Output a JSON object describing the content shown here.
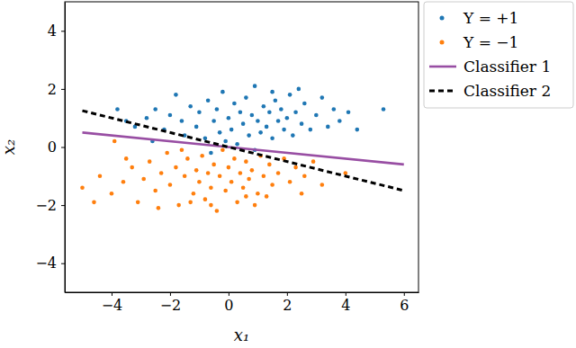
{
  "chart_data": {
    "type": "scatter",
    "x_label": "x₁",
    "y_label": "x₂",
    "xlim": [
      -5.6,
      6.5
    ],
    "ylim": [
      -5,
      5
    ],
    "xticks": [
      {
        "value": -4,
        "label": "−4"
      },
      {
        "value": -2,
        "label": "−2"
      },
      0,
      2,
      4,
      6
    ],
    "yticks": [
      {
        "value": -4,
        "label": "−4"
      },
      {
        "value": -2,
        "label": "−2"
      },
      0,
      2,
      4
    ],
    "grid": false,
    "legend": "right",
    "series": [
      {
        "name": "Y = +1",
        "type": "scatter",
        "marker": "circle",
        "color": "#1f77b4",
        "x": [
          -3.8,
          -3.5,
          -3.2,
          -2.8,
          -2.5,
          -2.2,
          -2.0,
          -1.8,
          -1.6,
          -1.5,
          -1.3,
          -1.1,
          -1.0,
          -0.8,
          -0.7,
          -0.5,
          -0.4,
          -0.3,
          -0.2,
          -0.1,
          0.0,
          0.1,
          0.2,
          0.3,
          0.4,
          0.5,
          0.6,
          0.7,
          0.8,
          0.9,
          1.0,
          1.1,
          1.2,
          1.3,
          1.4,
          1.5,
          1.6,
          1.7,
          1.8,
          1.9,
          2.0,
          2.1,
          2.2,
          2.3,
          2.5,
          2.6,
          2.8,
          3.0,
          3.2,
          3.4,
          3.6,
          3.8,
          4.1,
          4.4,
          5.3,
          -0.6,
          0.9,
          2.4,
          1.5,
          -2.6
        ],
        "values": [
          1.3,
          0.9,
          0.7,
          1.0,
          1.3,
          0.6,
          1.1,
          1.8,
          0.9,
          0.4,
          1.4,
          0.7,
          1.2,
          0.3,
          1.6,
          0.9,
          1.3,
          0.5,
          1.9,
          0.2,
          1.0,
          0.6,
          1.5,
          0.1,
          1.2,
          0.8,
          1.7,
          0.4,
          1.1,
          2.1,
          0.9,
          0.5,
          1.4,
          0.7,
          1.2,
          0.3,
          1.6,
          0.9,
          1.3,
          0.6,
          1.0,
          1.8,
          0.4,
          1.2,
          0.8,
          1.5,
          0.6,
          1.1,
          1.7,
          0.7,
          1.3,
          0.9,
          1.2,
          0.6,
          1.3,
          -0.2,
          -0.1,
          2.0,
          1.9,
          0.2
        ]
      },
      {
        "name": "Y = −1",
        "type": "scatter",
        "marker": "circle",
        "color": "#ff7f0e",
        "x": [
          -5.0,
          -4.4,
          -4.0,
          -3.9,
          -3.6,
          -3.3,
          -3.1,
          -2.9,
          -2.7,
          -2.5,
          -2.3,
          -2.1,
          -2.0,
          -1.8,
          -1.7,
          -1.5,
          -1.4,
          -1.2,
          -1.1,
          -1.0,
          -0.9,
          -0.8,
          -0.7,
          -0.6,
          -0.5,
          -0.4,
          -0.3,
          -0.2,
          -0.1,
          0.0,
          0.1,
          0.2,
          0.3,
          0.4,
          0.5,
          0.6,
          0.7,
          0.8,
          1.0,
          1.1,
          1.2,
          1.4,
          1.5,
          1.7,
          1.9,
          2.1,
          2.3,
          2.6,
          2.9,
          3.2,
          4.0,
          -2.4,
          -1.6,
          -3.5,
          -0.6,
          0.9,
          -4.6,
          1.3,
          2.5,
          -1.3,
          0.6
        ],
        "values": [
          -1.4,
          -1.0,
          -1.6,
          0.2,
          -1.2,
          -0.7,
          -1.9,
          -1.1,
          -0.5,
          -1.5,
          -0.9,
          -0.2,
          -1.3,
          -0.7,
          -2.0,
          -1.0,
          -0.4,
          -1.6,
          -0.8,
          -1.2,
          -0.3,
          -1.8,
          -0.9,
          -1.4,
          -0.6,
          -2.2,
          -1.0,
          -0.1,
          -1.5,
          -0.7,
          -1.2,
          -0.4,
          -1.9,
          -0.9,
          -1.4,
          -0.5,
          -1.1,
          -0.8,
          -1.6,
          -0.3,
          -1.0,
          -0.6,
          -1.3,
          -0.9,
          -0.4,
          -1.2,
          -0.7,
          -1.0,
          -0.5,
          -1.3,
          -0.9,
          -2.1,
          -0.1,
          -0.4,
          -2.0,
          -2.0,
          -1.9,
          -1.7,
          -1.6,
          -1.9,
          -1.7
        ]
      },
      {
        "name": "Classifier 1",
        "type": "line",
        "line_style": "solid",
        "color": "#984ea3",
        "x": [
          -5,
          6
        ],
        "values": [
          0.5,
          -0.6
        ]
      },
      {
        "name": "Classifier 2",
        "type": "line",
        "line_style": "dashed",
        "color": "#000000",
        "x": [
          -5,
          6
        ],
        "values": [
          1.25,
          -1.5
        ]
      }
    ]
  }
}
